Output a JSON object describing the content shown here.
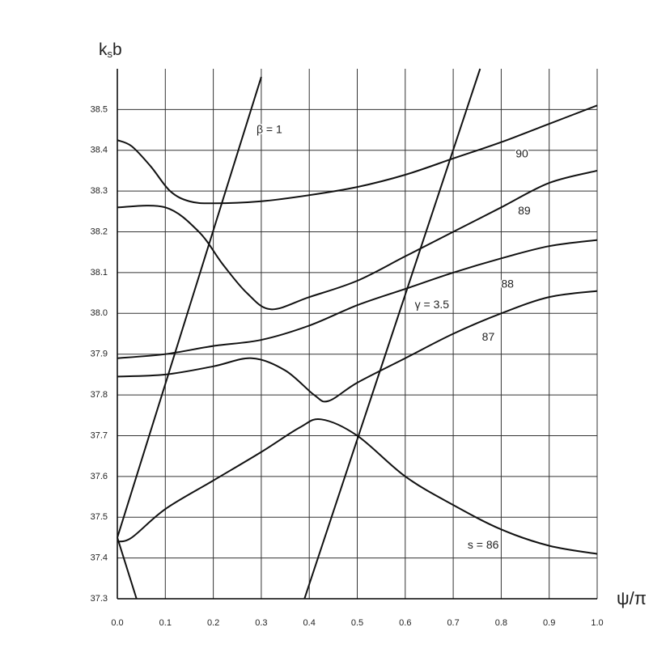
{
  "chart_data": {
    "type": "line",
    "ylabel_parts": [
      "k",
      "s",
      "b"
    ],
    "xlabel": "ψ/π",
    "xlim": [
      0,
      1
    ],
    "ylim": [
      37.3,
      38.6
    ],
    "xticks": [
      {
        "value": 0,
        "label": "0.0"
      },
      0.1,
      0.2,
      0.3,
      0.4,
      0.5,
      0.6,
      0.7,
      0.8,
      0.9,
      {
        "value": 1,
        "label": "1.0"
      }
    ],
    "yticks": [
      37.3,
      37.4,
      37.5,
      37.6,
      37.7,
      37.8,
      37.9,
      {
        "value": 38,
        "label": "38.0"
      },
      38.1,
      38.2,
      38.3,
      38.4,
      38.5
    ],
    "grid": true,
    "color": "#111111",
    "series": [
      {
        "name": "90",
        "x": [
          0,
          0.03,
          0.07,
          0.11,
          0.15,
          0.2,
          0.3,
          0.4,
          0.5,
          0.6,
          0.7,
          0.8,
          0.9,
          1.0
        ],
        "values": [
          38.425,
          38.41,
          38.36,
          38.3,
          38.275,
          38.27,
          38.275,
          38.29,
          38.31,
          38.34,
          38.38,
          38.42,
          38.465,
          38.51
        ]
      },
      {
        "name": "89",
        "x": [
          0,
          0.1,
          0.17,
          0.22,
          0.27,
          0.32,
          0.4,
          0.5,
          0.6,
          0.7,
          0.8,
          0.9,
          1.0
        ],
        "values": [
          38.26,
          38.26,
          38.2,
          38.12,
          38.05,
          38.01,
          38.04,
          38.08,
          38.14,
          38.2,
          38.26,
          38.32,
          38.35
        ]
      },
      {
        "name": "88",
        "x": [
          0,
          0.1,
          0.2,
          0.3,
          0.4,
          0.5,
          0.6,
          0.7,
          0.8,
          0.9,
          1.0
        ],
        "values": [
          37.89,
          37.9,
          37.92,
          37.935,
          37.97,
          38.02,
          38.06,
          38.1,
          38.135,
          38.165,
          38.18
        ]
      },
      {
        "name": "87",
        "x": [
          0,
          0.1,
          0.2,
          0.28,
          0.35,
          0.41,
          0.44,
          0.5,
          0.6,
          0.7,
          0.8,
          0.9,
          1.0
        ],
        "values": [
          37.845,
          37.85,
          37.87,
          37.89,
          37.86,
          37.8,
          37.785,
          37.83,
          37.89,
          37.95,
          38.0,
          38.04,
          38.055
        ]
      },
      {
        "name": "s = 86",
        "x": [
          0,
          0.03,
          0.1,
          0.2,
          0.3,
          0.38,
          0.425,
          0.5,
          0.6,
          0.7,
          0.8,
          0.9,
          1.0
        ],
        "values": [
          37.44,
          37.45,
          37.52,
          37.59,
          37.66,
          37.72,
          37.74,
          37.7,
          37.6,
          37.53,
          37.47,
          37.43,
          37.41
        ]
      },
      {
        "name": "β = 1",
        "x": [
          0,
          0.3
        ],
        "values": [
          37.45,
          38.58
        ]
      },
      {
        "name": "γ = 3.5",
        "x": [
          0.39,
          0.756
        ],
        "values": [
          37.3,
          38.6
        ]
      },
      {
        "x": [
          0,
          0.04
        ],
        "values": [
          37.45,
          37.3
        ]
      }
    ]
  }
}
